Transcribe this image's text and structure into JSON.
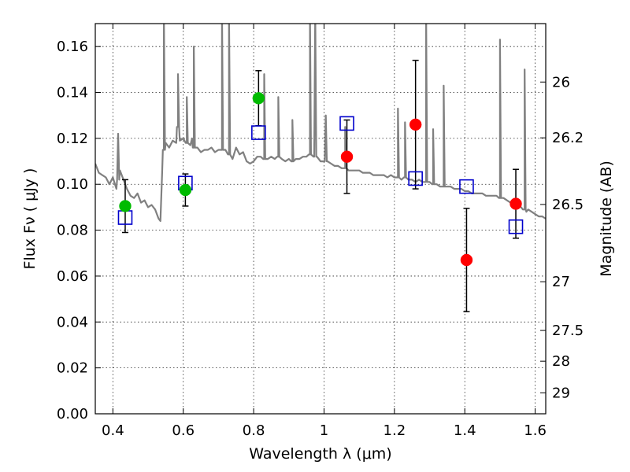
{
  "chart_data": {
    "type": "scatter",
    "xlabel": "Wavelength  λ (μm)",
    "ylabel": "Flux  Fν  ( μJy )",
    "y2label": "Magnitude (AB)",
    "xlim": [
      0.35,
      1.63
    ],
    "ylim": [
      0.0,
      0.17
    ],
    "grid": true,
    "x_ticks": [
      {
        "value": 0.4,
        "label": "0.4"
      },
      {
        "value": 0.6,
        "label": "0.6"
      },
      {
        "value": 0.8,
        "label": "0.8"
      },
      {
        "value": 1.0,
        "label": "1"
      },
      {
        "value": 1.2,
        "label": "1.2"
      },
      {
        "value": 1.4,
        "label": "1.4"
      },
      {
        "value": 1.6,
        "label": "1.6"
      }
    ],
    "y_ticks": [
      {
        "value": 0.0,
        "label": "0.00"
      },
      {
        "value": 0.02,
        "label": "0.02"
      },
      {
        "value": 0.04,
        "label": "0.04"
      },
      {
        "value": 0.06,
        "label": "0.06"
      },
      {
        "value": 0.08,
        "label": "0.08"
      },
      {
        "value": 0.1,
        "label": "0.10"
      },
      {
        "value": 0.12,
        "label": "0.12"
      },
      {
        "value": 0.14,
        "label": "0.14"
      },
      {
        "value": 0.16,
        "label": "0.16"
      }
    ],
    "y2_ticks": [
      {
        "mag": 26,
        "label": "26"
      },
      {
        "mag": 26.2,
        "label": "26.2"
      },
      {
        "mag": 26.5,
        "label": "26.5"
      },
      {
        "mag": 27,
        "label": "27"
      },
      {
        "mag": 27.5,
        "label": "27.5"
      },
      {
        "mag": 28,
        "label": "28"
      },
      {
        "mag": 29,
        "label": "29"
      }
    ],
    "colors": {
      "sed": "#808080",
      "green": "#00bb00",
      "red": "#ff0000",
      "model_box": "#0000cc",
      "errorbar": "#000000"
    },
    "sed_model": {
      "x": [
        0.35,
        0.36,
        0.37,
        0.38,
        0.39,
        0.4,
        0.41,
        0.42,
        0.43,
        0.44,
        0.45,
        0.46,
        0.47,
        0.48,
        0.49,
        0.5,
        0.51,
        0.52,
        0.53,
        0.535,
        0.54,
        0.545,
        0.55,
        0.56,
        0.57,
        0.58,
        0.585,
        0.59,
        0.6,
        0.61,
        0.62,
        0.625,
        0.63,
        0.64,
        0.65,
        0.66,
        0.67,
        0.68,
        0.69,
        0.7,
        0.71,
        0.72,
        0.73,
        0.74,
        0.75,
        0.76,
        0.77,
        0.78,
        0.79,
        0.8,
        0.81,
        0.82,
        0.83,
        0.84,
        0.85,
        0.86,
        0.87,
        0.88,
        0.89,
        0.9,
        0.91,
        0.92,
        0.93,
        0.94,
        0.95,
        0.96,
        0.97,
        0.98,
        0.99,
        1.0,
        1.01,
        1.02,
        1.03,
        1.04,
        1.05,
        1.06,
        1.07,
        1.08,
        1.09,
        1.1,
        1.11,
        1.12,
        1.13,
        1.14,
        1.15,
        1.16,
        1.17,
        1.18,
        1.19,
        1.2,
        1.21,
        1.22,
        1.23,
        1.24,
        1.25,
        1.26,
        1.27,
        1.28,
        1.29,
        1.3,
        1.31,
        1.32,
        1.33,
        1.34,
        1.35,
        1.36,
        1.37,
        1.38,
        1.39,
        1.4,
        1.41,
        1.42,
        1.43,
        1.44,
        1.45,
        1.46,
        1.47,
        1.48,
        1.49,
        1.5,
        1.51,
        1.52,
        1.53,
        1.54,
        1.55,
        1.56,
        1.565,
        1.57,
        1.575,
        1.58,
        1.59,
        1.6,
        1.61,
        1.62,
        1.63
      ],
      "y": [
        0.109,
        0.105,
        0.104,
        0.103,
        0.1,
        0.103,
        0.098,
        0.106,
        0.102,
        0.098,
        0.095,
        0.094,
        0.096,
        0.092,
        0.093,
        0.09,
        0.091,
        0.089,
        0.085,
        0.084,
        0.105,
        0.115,
        0.118,
        0.116,
        0.119,
        0.118,
        0.125,
        0.119,
        0.12,
        0.118,
        0.117,
        0.12,
        0.116,
        0.116,
        0.114,
        0.115,
        0.115,
        0.116,
        0.114,
        0.115,
        0.115,
        0.115,
        0.113,
        0.111,
        0.116,
        0.113,
        0.114,
        0.11,
        0.109,
        0.11,
        0.112,
        0.112,
        0.111,
        0.111,
        0.112,
        0.111,
        0.112,
        0.111,
        0.11,
        0.111,
        0.11,
        0.111,
        0.111,
        0.112,
        0.112,
        0.113,
        0.112,
        0.112,
        0.11,
        0.11,
        0.11,
        0.109,
        0.108,
        0.108,
        0.107,
        0.107,
        0.106,
        0.106,
        0.106,
        0.106,
        0.105,
        0.105,
        0.105,
        0.104,
        0.104,
        0.104,
        0.104,
        0.103,
        0.104,
        0.103,
        0.103,
        0.102,
        0.103,
        0.102,
        0.102,
        0.101,
        0.102,
        0.101,
        0.101,
        0.101,
        0.1,
        0.1,
        0.099,
        0.099,
        0.099,
        0.099,
        0.098,
        0.098,
        0.098,
        0.097,
        0.097,
        0.096,
        0.096,
        0.096,
        0.096,
        0.095,
        0.095,
        0.095,
        0.095,
        0.094,
        0.094,
        0.093,
        0.092,
        0.091,
        0.091,
        0.09,
        0.089,
        0.089,
        0.088,
        0.089,
        0.088,
        0.087,
        0.086,
        0.086,
        0.085
      ],
      "emission_lines": [
        {
          "x": 0.415,
          "peak": 0.122
        },
        {
          "x": 0.545,
          "peak": 0.175
        },
        {
          "x": 0.585,
          "peak": 0.148
        },
        {
          "x": 0.61,
          "peak": 0.138
        },
        {
          "x": 0.63,
          "peak": 0.16
        },
        {
          "x": 0.71,
          "peak": 0.175
        },
        {
          "x": 0.73,
          "peak": 0.175
        },
        {
          "x": 0.83,
          "peak": 0.148
        },
        {
          "x": 0.87,
          "peak": 0.138
        },
        {
          "x": 0.91,
          "peak": 0.128
        },
        {
          "x": 0.96,
          "peak": 0.175
        },
        {
          "x": 0.975,
          "peak": 0.175
        },
        {
          "x": 1.005,
          "peak": 0.13
        },
        {
          "x": 1.06,
          "peak": 0.125
        },
        {
          "x": 1.21,
          "peak": 0.133
        },
        {
          "x": 1.23,
          "peak": 0.127
        },
        {
          "x": 1.31,
          "peak": 0.124
        },
        {
          "x": 1.34,
          "peak": 0.143
        },
        {
          "x": 1.29,
          "peak": 0.175
        },
        {
          "x": 1.5,
          "peak": 0.163
        },
        {
          "x": 1.57,
          "peak": 0.15
        }
      ]
    },
    "model_photometry": [
      {
        "x": 0.435,
        "y": 0.0855
      },
      {
        "x": 0.606,
        "y": 0.1005
      },
      {
        "x": 0.814,
        "y": 0.1225
      },
      {
        "x": 1.065,
        "y": 0.1265
      },
      {
        "x": 1.26,
        "y": 0.1025
      },
      {
        "x": 1.405,
        "y": 0.099
      },
      {
        "x": 1.545,
        "y": 0.0815
      }
    ],
    "observed": [
      {
        "x": 0.435,
        "y": 0.0905,
        "yerr_low": 0.0115,
        "yerr_high": 0.0115,
        "color": "green"
      },
      {
        "x": 0.606,
        "y": 0.0975,
        "yerr_low": 0.007,
        "yerr_high": 0.007,
        "color": "green"
      },
      {
        "x": 0.814,
        "y": 0.1375,
        "yerr_low": 0.012,
        "yerr_high": 0.012,
        "color": "green"
      },
      {
        "x": 1.065,
        "y": 0.112,
        "yerr_low": 0.016,
        "yerr_high": 0.016,
        "color": "red"
      },
      {
        "x": 1.26,
        "y": 0.126,
        "yerr_low": 0.028,
        "yerr_high": 0.028,
        "color": "red"
      },
      {
        "x": 1.405,
        "y": 0.067,
        "yerr_low": 0.0225,
        "yerr_high": 0.0225,
        "color": "red"
      },
      {
        "x": 1.545,
        "y": 0.0915,
        "yerr_low": 0.015,
        "yerr_high": 0.015,
        "color": "red"
      }
    ]
  }
}
